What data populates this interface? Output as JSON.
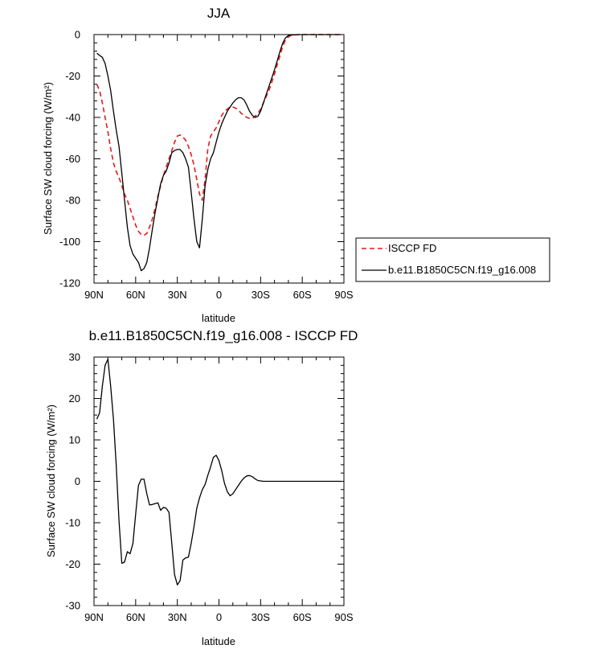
{
  "chart_data": [
    {
      "type": "line",
      "title": "JJA",
      "xlabel": "latitude",
      "ylabel": "Surface SW cloud forcing (W/m²)",
      "xlim": [
        90,
        -90
      ],
      "ylim": [
        -120,
        0
      ],
      "x_tick_values": [
        90,
        60,
        30,
        0,
        -30,
        -60,
        -90
      ],
      "x_tick_labels": [
        "90N",
        "60N",
        "30N",
        "0",
        "30S",
        "60S",
        "90S"
      ],
      "y_tick_values": [
        0,
        -20,
        -40,
        -60,
        -80,
        -100,
        -120
      ],
      "y_tick_labels": [
        "0",
        "-20",
        "-40",
        "-60",
        "-80",
        "-100",
        "-120"
      ],
      "legend_position": "right",
      "series": [
        {
          "name": "ISCCP FD",
          "color": "#e41a1c",
          "dash": "dashed",
          "x": [
            88,
            86,
            84,
            82,
            80,
            78,
            76,
            74,
            72,
            70,
            68,
            66,
            64,
            62,
            60,
            58,
            56,
            54,
            52,
            50,
            48,
            46,
            44,
            42,
            40,
            38,
            36,
            34,
            32,
            30,
            28,
            26,
            24,
            22,
            20,
            18,
            16,
            14,
            12,
            10,
            8,
            6,
            4,
            2,
            0,
            -2,
            -4,
            -6,
            -8,
            -10,
            -12,
            -14,
            -16,
            -18,
            -20,
            -22,
            -24,
            -26,
            -28,
            -30,
            -32,
            -34,
            -36,
            -38,
            -40,
            -42,
            -44,
            -46,
            -48,
            -50,
            -52,
            -54,
            -56,
            -58,
            -60,
            -62,
            -64,
            -66,
            -68,
            -70,
            -72,
            -74,
            -76,
            -78,
            -80,
            -82,
            -84,
            -86,
            -88
          ],
          "values": [
            -24,
            -27,
            -33,
            -40,
            -47,
            -55,
            -62,
            -66,
            -69,
            -73,
            -77,
            -80,
            -84,
            -88,
            -92,
            -95,
            -96.5,
            -97,
            -96,
            -93,
            -89,
            -84,
            -78,
            -73,
            -68,
            -64,
            -60,
            -56,
            -52,
            -49,
            -48.5,
            -49.5,
            -51,
            -54,
            -58,
            -63,
            -70,
            -77,
            -80,
            -70,
            -55,
            -49,
            -47,
            -45,
            -42,
            -39,
            -37,
            -36,
            -35,
            -35,
            -35.5,
            -36.5,
            -38,
            -39,
            -40,
            -40.5,
            -40.5,
            -39.5,
            -38,
            -36,
            -33,
            -30,
            -27,
            -23,
            -19,
            -14.5,
            -10,
            -5.5,
            -2.5,
            -1,
            -0.4,
            -0.2,
            -0.1,
            0,
            0,
            0,
            0,
            0,
            0,
            0,
            0,
            0,
            0,
            0,
            0,
            0,
            0,
            0,
            0
          ]
        },
        {
          "name": "b.e11.B1850C5CN.f19_g16.008",
          "color": "#000000",
          "dash": "solid",
          "x": [
            88,
            86,
            84,
            82,
            80,
            78,
            76,
            74,
            72,
            70,
            68,
            66,
            64,
            62,
            60,
            58,
            56,
            54,
            52,
            50,
            48,
            46,
            44,
            42,
            40,
            38,
            36,
            34,
            32,
            30,
            28,
            26,
            24,
            22,
            20,
            18,
            16,
            14,
            12,
            10,
            8,
            6,
            4,
            2,
            0,
            -2,
            -4,
            -6,
            -8,
            -10,
            -12,
            -14,
            -16,
            -18,
            -20,
            -22,
            -24,
            -26,
            -28,
            -30,
            -32,
            -34,
            -36,
            -38,
            -40,
            -42,
            -44,
            -46,
            -48,
            -50,
            -52,
            -54,
            -56,
            -58,
            -60,
            -62,
            -64,
            -66,
            -68,
            -70,
            -72,
            -74,
            -76,
            -78,
            -80,
            -82,
            -84,
            -86,
            -88
          ],
          "values": [
            -9,
            -10,
            -11,
            -14,
            -20,
            -27,
            -37,
            -46,
            -54,
            -67,
            -80,
            -93,
            -102,
            -106,
            -108,
            -110,
            -114,
            -113,
            -110,
            -103,
            -94,
            -86,
            -79,
            -72,
            -68,
            -66,
            -62,
            -57,
            -56,
            -55.5,
            -55.5,
            -57,
            -60,
            -64,
            -76,
            -89,
            -100,
            -103,
            -89,
            -73,
            -65,
            -60,
            -57,
            -52,
            -47,
            -43,
            -40,
            -37,
            -35,
            -33,
            -31.5,
            -30.5,
            -30.5,
            -31.5,
            -34,
            -37,
            -39,
            -40,
            -39.5,
            -37,
            -33,
            -29,
            -25,
            -21,
            -17,
            -12.5,
            -8,
            -4,
            -1.5,
            -0.5,
            -0.2,
            -0.1,
            0,
            0,
            0,
            0,
            0,
            0,
            0,
            0,
            0,
            0,
            0,
            0,
            0,
            0,
            0,
            0,
            0
          ]
        }
      ]
    },
    {
      "type": "line",
      "title": "b.e11.B1850C5CN.f19_g16.008 - ISCCP FD",
      "xlabel": "latitude",
      "ylabel": "Surface SW cloud forcing (W/m²)",
      "xlim": [
        90,
        -90
      ],
      "ylim": [
        -30,
        30
      ],
      "x_tick_values": [
        90,
        60,
        30,
        0,
        -30,
        -60,
        -90
      ],
      "x_tick_labels": [
        "90N",
        "60N",
        "30N",
        "0",
        "30S",
        "60S",
        "90S"
      ],
      "y_tick_values": [
        30,
        20,
        10,
        0,
        -10,
        -20,
        -30
      ],
      "y_tick_labels": [
        "30",
        "20",
        "10",
        "0",
        "-10",
        "-20",
        "-30"
      ],
      "series": [
        {
          "color": "#000000",
          "dash": "solid",
          "x": [
            88,
            86,
            84,
            82,
            80,
            78,
            76,
            74,
            72,
            70,
            68,
            66,
            64,
            62,
            60,
            58,
            56,
            54,
            52,
            50,
            48,
            46,
            44,
            42,
            40,
            38,
            36,
            34,
            32,
            30,
            28,
            26,
            24,
            22,
            20,
            18,
            16,
            14,
            12,
            10,
            8,
            6,
            4,
            2,
            0,
            -2,
            -4,
            -6,
            -8,
            -10,
            -12,
            -14,
            -16,
            -18,
            -20,
            -22,
            -24,
            -26,
            -28,
            -30,
            -32,
            -34,
            -36,
            -38,
            -40,
            -42,
            -44,
            -46,
            -48,
            -50,
            -52,
            -54,
            -56,
            -58,
            -60,
            -62,
            -64,
            -66,
            -68,
            -70,
            -72,
            -74,
            -76,
            -78,
            -80,
            -82,
            -84,
            -86,
            -88
          ],
          "values": [
            15,
            16.5,
            23,
            28,
            29.5,
            23,
            15,
            4,
            -9.5,
            -19.8,
            -19.5,
            -17,
            -17.5,
            -15,
            -8,
            -1,
            0.5,
            0.5,
            -3,
            -5.7,
            -5.6,
            -5.4,
            -5.2,
            -7,
            -6.3,
            -6.5,
            -7.5,
            -15,
            -22.5,
            -25,
            -24,
            -19,
            -18.5,
            -18.3,
            -15,
            -11,
            -6.5,
            -4,
            -2,
            -0.8,
            1.5,
            3.5,
            5.8,
            6.3,
            5,
            2.5,
            -0.5,
            -2.5,
            -3.5,
            -3,
            -2,
            -1,
            0,
            0.8,
            1.3,
            1.4,
            1.1,
            0.6,
            0.2,
            0.1,
            0,
            0,
            0,
            0,
            0,
            0,
            0,
            0,
            0,
            0,
            0,
            0,
            0,
            0,
            0,
            0,
            0,
            0,
            0,
            0,
            0,
            0,
            0,
            0,
            0,
            0,
            0,
            0,
            0
          ]
        }
      ]
    }
  ]
}
